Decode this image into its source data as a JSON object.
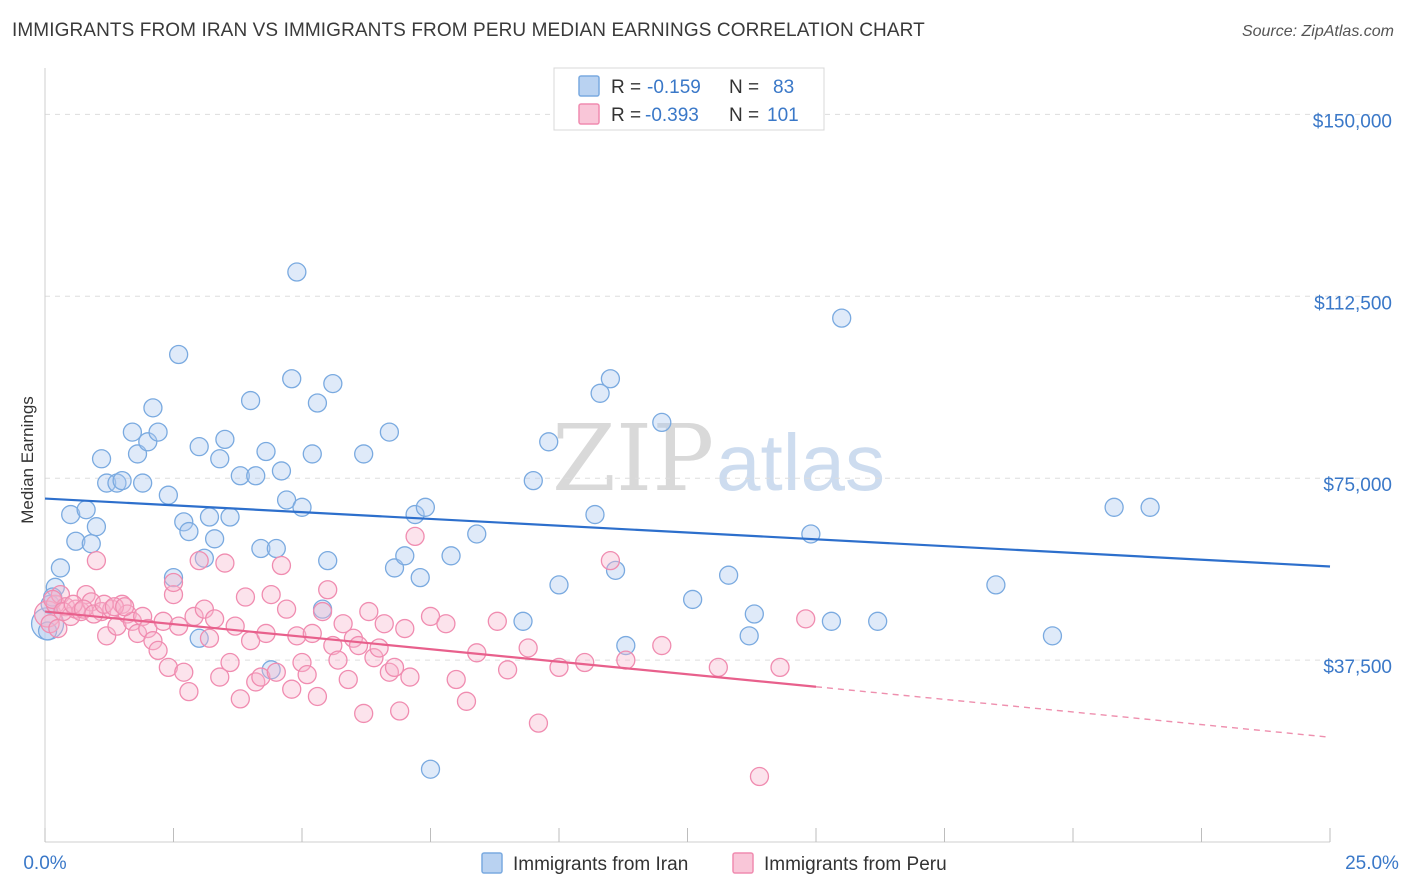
{
  "title": "IMMIGRANTS FROM IRAN VS IMMIGRANTS FROM PERU MEDIAN EARNINGS CORRELATION CHART",
  "source": "Source: ZipAtlas.com",
  "watermark": {
    "zip": "ZIP",
    "atlas": "atlas"
  },
  "colors": {
    "iran": "#7aaae0",
    "iran_fill": "rgba(170,200,240,0.38)",
    "iran_line": "#2d6fcc",
    "peru": "#f08cb0",
    "peru_fill": "rgba(248,182,206,0.38)",
    "peru_line": "#e8608c",
    "tick_text": "#3a78c8",
    "grid": "#dddddd"
  },
  "legend": {
    "r_label": "R =",
    "n_label": "N =",
    "rows": [
      {
        "series": "iran",
        "r": "-0.159",
        "n": "83"
      },
      {
        "series": "peru",
        "r": "-0.393",
        "n": "101"
      }
    ]
  },
  "chart_data": {
    "type": "scatter",
    "title": "IMMIGRANTS FROM IRAN VS IMMIGRANTS FROM PERU MEDIAN EARNINGS CORRELATION CHART",
    "xlabel": "",
    "ylabel": "Median Earnings",
    "xlim": [
      0,
      25
    ],
    "ylim": [
      0,
      157500
    ],
    "x_tick_labels": [
      "0.0%",
      "25.0%"
    ],
    "y_ticks": [
      37500,
      75000,
      112500,
      150000
    ],
    "y_tick_labels": [
      "$37,500",
      "$75,000",
      "$112,500",
      "$150,000"
    ],
    "grid": "horizontal dashed",
    "legend_position": "top-center",
    "series": [
      {
        "name": "Immigrants from Iran",
        "key": "iran",
        "trend": {
          "x": [
            0,
            25
          ],
          "y": [
            70800,
            56800
          ]
        },
        "points": [
          [
            0.05,
            45000
          ],
          [
            0.1,
            49000
          ],
          [
            0.2,
            52500
          ],
          [
            0.3,
            56500
          ],
          [
            0.5,
            67500
          ],
          [
            0.6,
            62000
          ],
          [
            0.8,
            68500
          ],
          [
            0.9,
            61500
          ],
          [
            1.0,
            65000
          ],
          [
            1.1,
            79000
          ],
          [
            1.2,
            74000
          ],
          [
            1.4,
            74000
          ],
          [
            1.5,
            74500
          ],
          [
            1.7,
            84500
          ],
          [
            1.8,
            80000
          ],
          [
            1.9,
            74000
          ],
          [
            2.0,
            82500
          ],
          [
            2.1,
            89500
          ],
          [
            2.2,
            84500
          ],
          [
            2.4,
            71500
          ],
          [
            2.5,
            54500
          ],
          [
            2.6,
            100500
          ],
          [
            2.7,
            66000
          ],
          [
            2.8,
            64000
          ],
          [
            3.0,
            42000
          ],
          [
            3.0,
            81500
          ],
          [
            3.1,
            58500
          ],
          [
            3.2,
            67000
          ],
          [
            3.3,
            62500
          ],
          [
            3.4,
            79000
          ],
          [
            3.5,
            83000
          ],
          [
            3.6,
            67000
          ],
          [
            3.8,
            75500
          ],
          [
            4.0,
            91000
          ],
          [
            4.1,
            75500
          ],
          [
            4.2,
            60500
          ],
          [
            4.3,
            80500
          ],
          [
            4.4,
            35500
          ],
          [
            4.5,
            60500
          ],
          [
            4.6,
            76500
          ],
          [
            4.7,
            70500
          ],
          [
            4.8,
            95500
          ],
          [
            4.9,
            117500
          ],
          [
            5.0,
            69000
          ],
          [
            5.2,
            80000
          ],
          [
            5.3,
            90500
          ],
          [
            5.4,
            48000
          ],
          [
            5.5,
            58000
          ],
          [
            5.6,
            94500
          ],
          [
            6.2,
            80000
          ],
          [
            6.7,
            84500
          ],
          [
            6.8,
            56500
          ],
          [
            7.0,
            59000
          ],
          [
            7.2,
            67500
          ],
          [
            7.3,
            54500
          ],
          [
            7.4,
            69000
          ],
          [
            7.5,
            15000
          ],
          [
            7.9,
            59000
          ],
          [
            8.4,
            63500
          ],
          [
            9.3,
            45500
          ],
          [
            9.5,
            74500
          ],
          [
            9.8,
            82500
          ],
          [
            10.0,
            53000
          ],
          [
            10.7,
            67500
          ],
          [
            10.8,
            92500
          ],
          [
            11.0,
            95500
          ],
          [
            11.1,
            56000
          ],
          [
            11.3,
            40500
          ],
          [
            12.0,
            86500
          ],
          [
            12.6,
            50000
          ],
          [
            13.3,
            55000
          ],
          [
            13.7,
            42500
          ],
          [
            13.8,
            47000
          ],
          [
            14.9,
            63500
          ],
          [
            15.3,
            45500
          ],
          [
            15.5,
            108000
          ],
          [
            16.2,
            45500
          ],
          [
            18.5,
            53000
          ],
          [
            19.6,
            42500
          ],
          [
            20.8,
            69000
          ],
          [
            21.5,
            69000
          ],
          [
            0.05,
            43500
          ],
          [
            0.15,
            50500
          ]
        ]
      },
      {
        "name": "Immigrants from Peru",
        "key": "peru",
        "trend": {
          "x": [
            0,
            15
          ],
          "y": [
            47500,
            32000
          ]
        },
        "trend_extension": {
          "x": [
            15,
            25
          ],
          "y": [
            32000,
            21600
          ]
        },
        "points": [
          [
            0.05,
            47000
          ],
          [
            0.1,
            45000
          ],
          [
            0.2,
            49000
          ],
          [
            0.3,
            51000
          ],
          [
            0.4,
            48500
          ],
          [
            0.5,
            46500
          ],
          [
            0.6,
            48000
          ],
          [
            0.7,
            47500
          ],
          [
            0.8,
            51000
          ],
          [
            0.9,
            49500
          ],
          [
            1.0,
            58000
          ],
          [
            1.1,
            47500
          ],
          [
            1.2,
            42500
          ],
          [
            1.3,
            48000
          ],
          [
            1.4,
            44500
          ],
          [
            1.5,
            49000
          ],
          [
            1.6,
            47000
          ],
          [
            1.7,
            45500
          ],
          [
            1.8,
            43000
          ],
          [
            1.9,
            46500
          ],
          [
            2.0,
            44000
          ],
          [
            2.1,
            41500
          ],
          [
            2.2,
            39500
          ],
          [
            2.3,
            45500
          ],
          [
            2.4,
            36000
          ],
          [
            2.5,
            51000
          ],
          [
            2.5,
            53500
          ],
          [
            2.6,
            44500
          ],
          [
            2.7,
            35000
          ],
          [
            2.8,
            31000
          ],
          [
            2.9,
            46500
          ],
          [
            3.0,
            58000
          ],
          [
            3.1,
            48000
          ],
          [
            3.2,
            42000
          ],
          [
            3.3,
            46000
          ],
          [
            3.4,
            34000
          ],
          [
            3.5,
            57500
          ],
          [
            3.6,
            37000
          ],
          [
            3.7,
            44500
          ],
          [
            3.8,
            29500
          ],
          [
            3.9,
            50500
          ],
          [
            4.0,
            41500
          ],
          [
            4.1,
            33000
          ],
          [
            4.2,
            34000
          ],
          [
            4.3,
            43000
          ],
          [
            4.4,
            51000
          ],
          [
            4.5,
            35000
          ],
          [
            4.6,
            57000
          ],
          [
            4.7,
            48000
          ],
          [
            4.8,
            31500
          ],
          [
            4.9,
            42500
          ],
          [
            5.0,
            37000
          ],
          [
            5.1,
            34500
          ],
          [
            5.2,
            43000
          ],
          [
            5.3,
            30000
          ],
          [
            5.4,
            47500
          ],
          [
            5.5,
            52000
          ],
          [
            5.6,
            40500
          ],
          [
            5.7,
            37500
          ],
          [
            5.8,
            45000
          ],
          [
            5.9,
            33500
          ],
          [
            6.0,
            42000
          ],
          [
            6.1,
            40500
          ],
          [
            6.2,
            26500
          ],
          [
            6.3,
            47500
          ],
          [
            6.4,
            38000
          ],
          [
            6.5,
            40000
          ],
          [
            6.6,
            45000
          ],
          [
            6.7,
            35000
          ],
          [
            6.8,
            36000
          ],
          [
            6.9,
            27000
          ],
          [
            7.0,
            44000
          ],
          [
            7.1,
            34000
          ],
          [
            7.2,
            63000
          ],
          [
            7.5,
            46500
          ],
          [
            7.8,
            45000
          ],
          [
            8.0,
            33500
          ],
          [
            8.2,
            29000
          ],
          [
            8.4,
            39000
          ],
          [
            8.8,
            45500
          ],
          [
            9.0,
            35500
          ],
          [
            9.4,
            40000
          ],
          [
            9.6,
            24500
          ],
          [
            10.0,
            36000
          ],
          [
            10.5,
            37000
          ],
          [
            11.0,
            58000
          ],
          [
            11.3,
            37500
          ],
          [
            12.0,
            40500
          ],
          [
            13.1,
            36000
          ],
          [
            13.9,
            13500
          ],
          [
            14.3,
            36000
          ],
          [
            14.8,
            46000
          ],
          [
            0.15,
            50000
          ],
          [
            0.35,
            47500
          ],
          [
            0.55,
            49000
          ],
          [
            0.75,
            48000
          ],
          [
            0.95,
            47000
          ],
          [
            1.15,
            49000
          ],
          [
            1.35,
            48500
          ],
          [
            1.55,
            48500
          ],
          [
            0.25,
            44000
          ]
        ]
      }
    ]
  },
  "bottom_legend": [
    {
      "series": "iran",
      "label": "Immigrants from Iran"
    },
    {
      "series": "peru",
      "label": "Immigrants from Peru"
    }
  ]
}
